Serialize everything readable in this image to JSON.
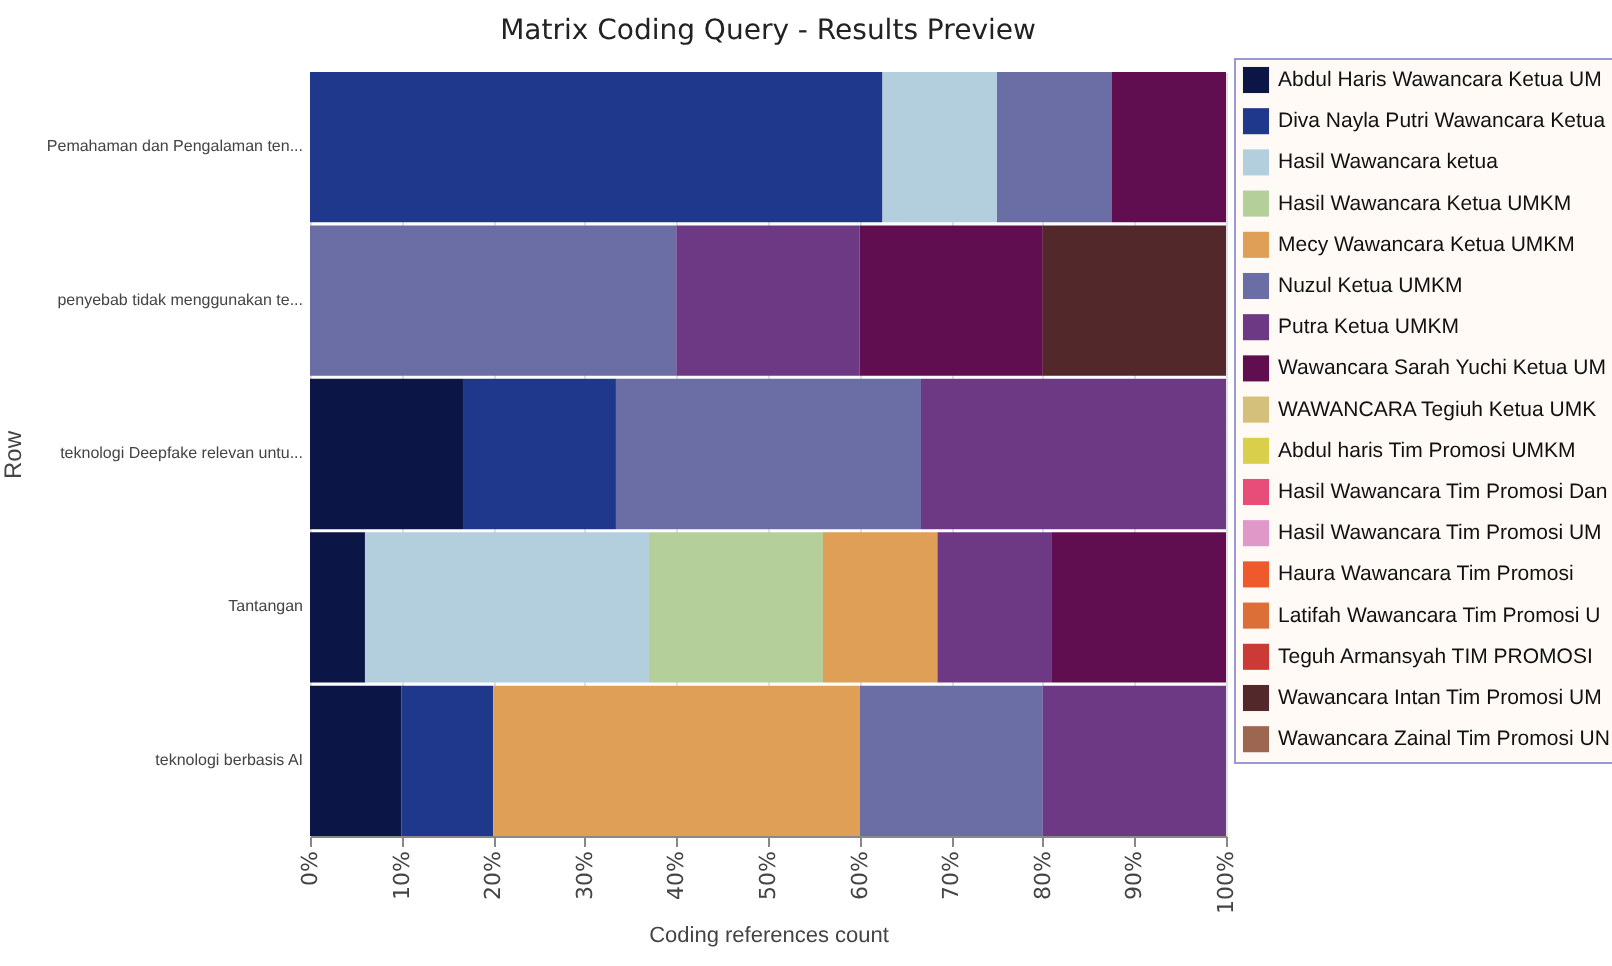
{
  "chart_data": {
    "type": "bar",
    "orientation": "horizontal",
    "stacked": true,
    "title": "Matrix Coding Query - Results Preview",
    "xlabel": "Coding references count",
    "ylabel": "Row",
    "categories": [
      "Pemahaman dan Pengalaman ten...",
      "penyebab tidak menggunakan te...",
      "teknologi Deepfake relevan untu...",
      "Tantangan",
      "teknologi berbasis AI"
    ],
    "xlim": [
      0,
      100
    ],
    "xticks": [
      {
        "value": 0,
        "label": "0%"
      },
      {
        "value": 10,
        "label": "10%"
      },
      {
        "value": 20,
        "label": "20%"
      },
      {
        "value": 30,
        "label": "30%"
      },
      {
        "value": 40,
        "label": "40%"
      },
      {
        "value": 50,
        "label": "50%"
      },
      {
        "value": 60,
        "label": "60%"
      },
      {
        "value": 70,
        "label": "70%"
      },
      {
        "value": 80,
        "label": "80%"
      },
      {
        "value": 90,
        "label": "90%"
      },
      {
        "value": 100,
        "label": "100%"
      }
    ],
    "grid": "x",
    "legend": "right",
    "series": [
      {
        "name": "Abdul Haris Wawancara Ketua UM",
        "color": "#0c1646",
        "values": [
          null,
          null,
          16.7,
          6,
          10
        ]
      },
      {
        "name": "Diva Nayla Putri Wawancara Ketua",
        "color": "#20388c",
        "values": [
          62.5,
          null,
          16.7,
          null,
          10
        ]
      },
      {
        "name": "Hasil Wawancara ketua",
        "color": "#b3cedc",
        "values": [
          12.5,
          null,
          null,
          31,
          null
        ]
      },
      {
        "name": "Hasil Wawancara Ketua UMKM",
        "color": "#b4cf9a",
        "values": [
          null,
          null,
          null,
          19,
          null
        ]
      },
      {
        "name": "Mecy  Wawancara Ketua UMKM",
        "color": "#e09f56",
        "values": [
          null,
          null,
          null,
          12.5,
          40
        ]
      },
      {
        "name": "Nuzul Ketua UMKM",
        "color": "#6b6da5",
        "values": [
          12.5,
          40,
          33.3,
          null,
          20
        ]
      },
      {
        "name": "Putra Ketua UMKM",
        "color": "#6d3884",
        "values": [
          null,
          20,
          33.3,
          12.5,
          20
        ]
      },
      {
        "name": "Wawancara Sarah Yuchi Ketua UM",
        "color": "#600e4f",
        "values": [
          12.5,
          20,
          null,
          19,
          null
        ]
      },
      {
        "name": "WAWANCARA Tegiuh Ketua UMK",
        "color": "#d4c07a",
        "values": [
          null,
          null,
          null,
          null,
          null
        ]
      },
      {
        "name": "Abdul haris Tim Promosi UMKM",
        "color": "#d9cf4a",
        "values": [
          null,
          null,
          null,
          null,
          null
        ]
      },
      {
        "name": "Hasil Wawancara Tim Promosi Dan",
        "color": "#e84c78",
        "values": [
          null,
          null,
          null,
          null,
          null
        ]
      },
      {
        "name": "Hasil Wawancara Tim Promosi UM",
        "color": "#df98c8",
        "values": [
          null,
          null,
          null,
          null,
          null
        ]
      },
      {
        "name": "Haura Wawancara Tim Promosi",
        "color": "#ef5a2c",
        "values": [
          null,
          null,
          null,
          null,
          null
        ]
      },
      {
        "name": "Latifah Wawancara Tim Promosi U",
        "color": "#dc6f38",
        "values": [
          null,
          null,
          null,
          null,
          null
        ]
      },
      {
        "name": "Teguh Armansyah TIM PROMOSI",
        "color": "#cc3a36",
        "values": [
          null,
          null,
          null,
          null,
          null
        ]
      },
      {
        "name": "Wawancara Intan Tim Promosi UM",
        "color": "#52282a",
        "values": [
          null,
          20,
          null,
          null,
          null
        ]
      },
      {
        "name": "Wawancara Zainal Tim Promosi UN",
        "color": "#9c6650",
        "values": [
          null,
          null,
          null,
          null,
          null
        ]
      }
    ]
  }
}
